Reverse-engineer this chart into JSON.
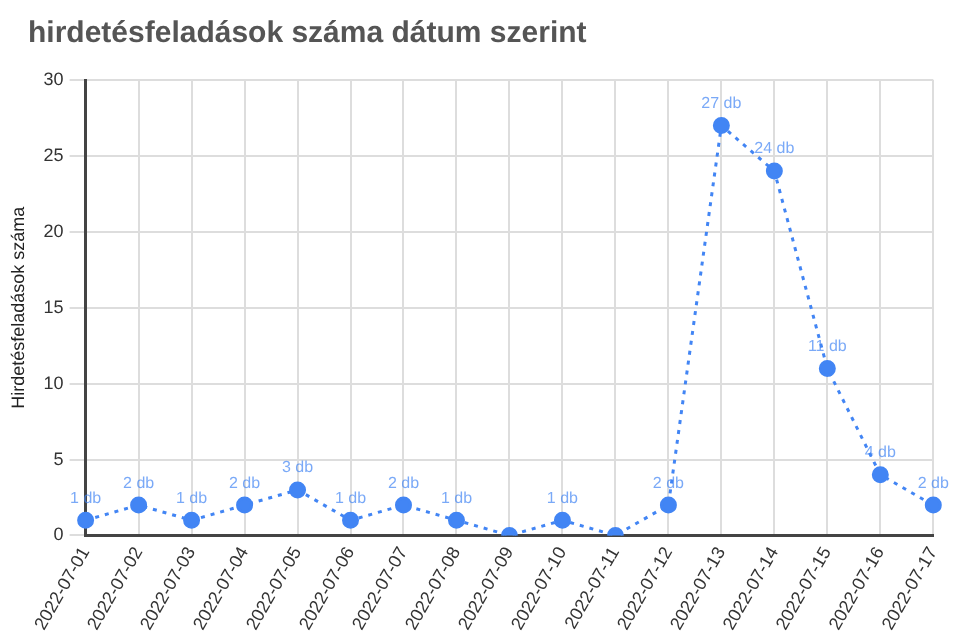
{
  "chart_data": {
    "type": "line",
    "title": "hirdetésfeladások száma dátum szerint",
    "ylabel": "Hirdetésfeladások száma",
    "categories": [
      "2022-07-01",
      "2022-07-02",
      "2022-07-03",
      "2022-07-04",
      "2022-07-05",
      "2022-07-06",
      "2022-07-07",
      "2022-07-08",
      "2022-07-09",
      "2022-07-10",
      "2022-07-11",
      "2022-07-12",
      "2022-07-13",
      "2022-07-14",
      "2022-07-15",
      "2022-07-16",
      "2022-07-17"
    ],
    "series": [
      {
        "color": "#4285f4",
        "values": [
          1,
          2,
          1,
          2,
          3,
          1,
          2,
          1,
          0,
          1,
          0,
          2,
          27,
          24,
          11,
          4,
          2
        ],
        "value_labels": [
          "1 db",
          "2 db",
          "1 db",
          "2 db",
          "3 db",
          "1 db",
          "2 db",
          "1 db",
          null,
          "1 db",
          null,
          "2 db",
          "27 db",
          "24 db",
          "11 db",
          "4 db",
          "2 db"
        ]
      }
    ],
    "ylim": [
      0,
      30
    ],
    "yticks": [
      0,
      5,
      10,
      15,
      20,
      25,
      30
    ],
    "grid": true,
    "marker": "circle",
    "line_style": "dotted",
    "legend": false
  }
}
